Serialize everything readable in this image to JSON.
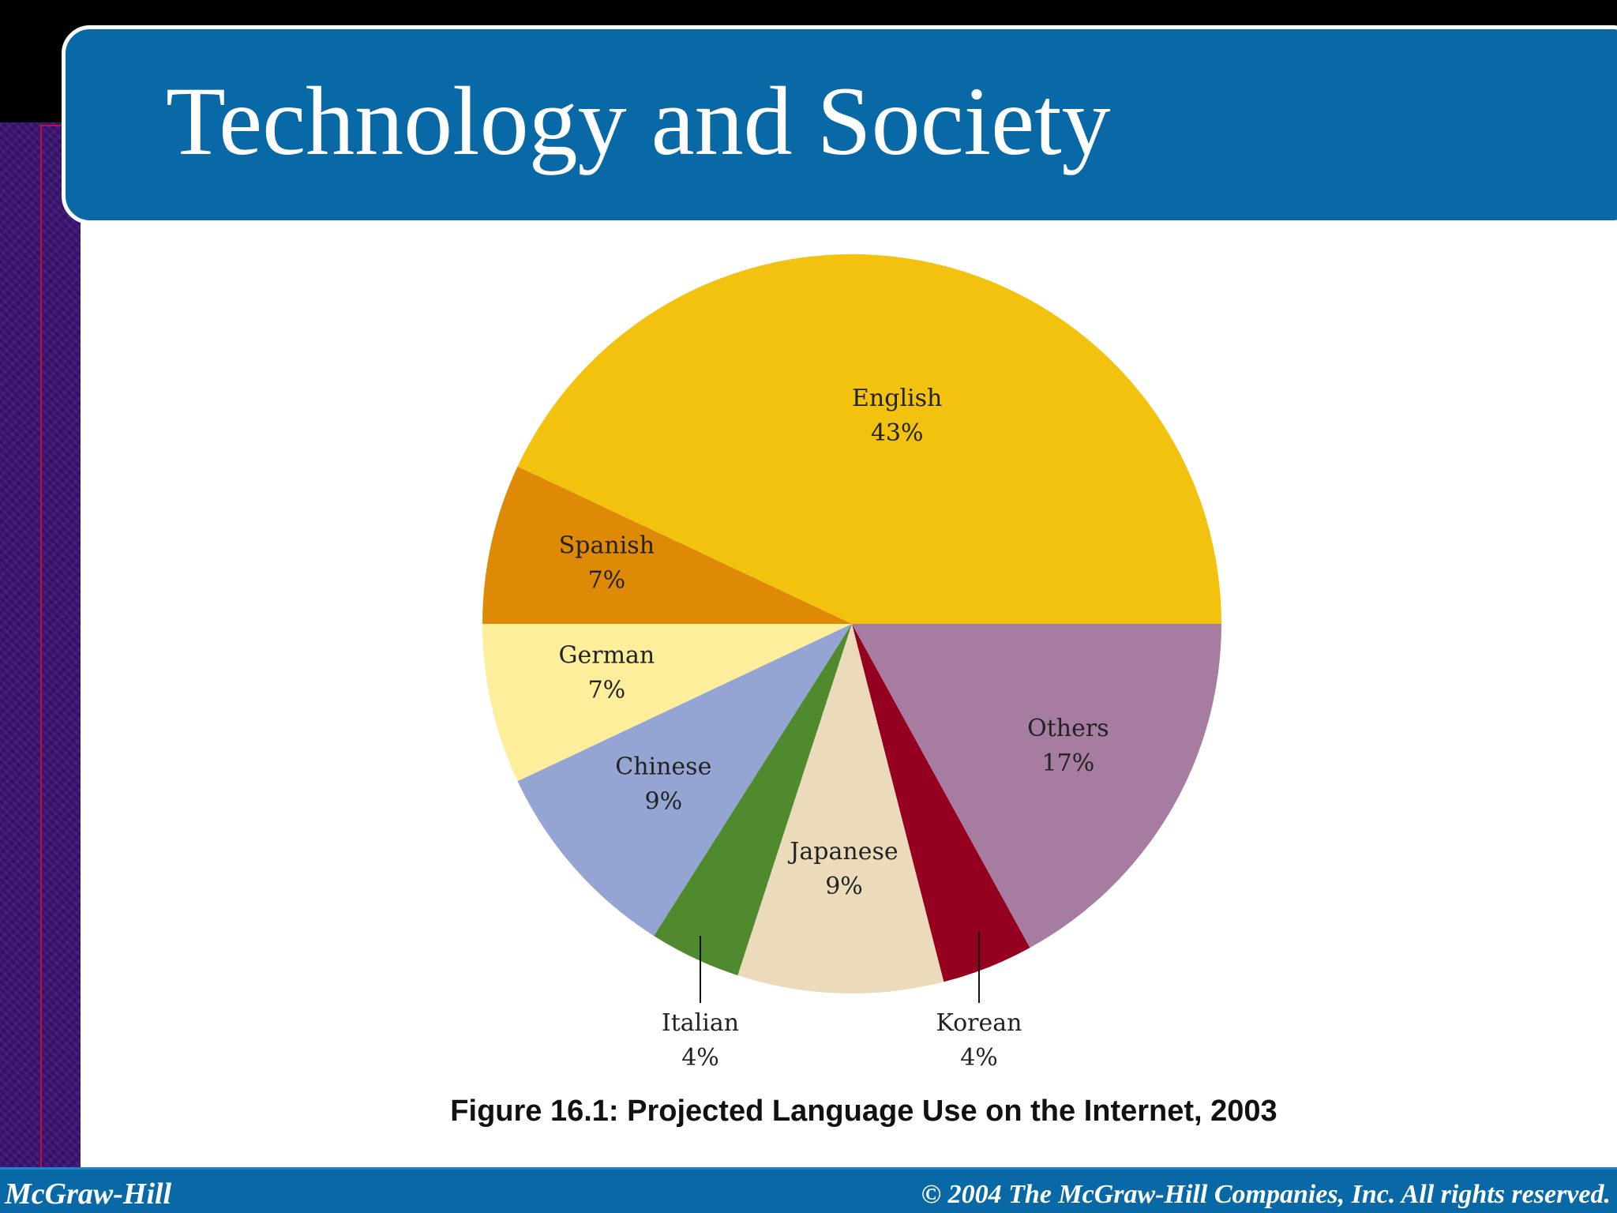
{
  "slide": {
    "title": "Technology and Society",
    "footer_left": "McGraw-Hill",
    "footer_right": "© 2004 The McGraw-Hill Companies, Inc. All rights reserved."
  },
  "chart_data": {
    "type": "pie",
    "title": "Figure 16.1: Projected Language Use on the Internet, 2003",
    "slices": [
      {
        "label": "English",
        "value": 43,
        "display": "43%",
        "color": "#f3c20e"
      },
      {
        "label": "Spanish",
        "value": 7,
        "display": "7%",
        "color": "#de8a06"
      },
      {
        "label": "German",
        "value": 7,
        "display": "7%",
        "color": "#fdee9c"
      },
      {
        "label": "Chinese",
        "value": 9,
        "display": "9%",
        "color": "#95a5d3"
      },
      {
        "label": "Italian",
        "value": 4,
        "display": "4%",
        "color": "#4f8b2e"
      },
      {
        "label": "Japanese",
        "value": 9,
        "display": "9%",
        "color": "#ecdbbb"
      },
      {
        "label": "Korean",
        "value": 4,
        "display": "4%",
        "color": "#950020"
      },
      {
        "label": "Others",
        "value": 17,
        "display": "17%",
        "color": "#a67da0"
      }
    ],
    "legend": "none"
  }
}
